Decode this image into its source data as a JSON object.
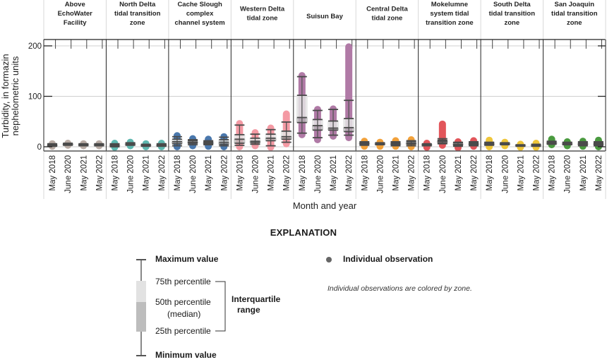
{
  "chart_data": {
    "type": "box",
    "ylabel": "Turbidity, in formazin nephelometric units",
    "xlabel": "Month and year",
    "ylim": [
      -8,
      212
    ],
    "yticks": [
      0,
      100,
      200
    ],
    "ytick_labels": [
      "0",
      "100",
      "200"
    ],
    "grid": true,
    "categories": [
      "May 2018",
      "June 2020",
      "May 2021",
      "May 2022"
    ],
    "zones": [
      {
        "name": "Above EchoWater Facility",
        "title_lines": [
          "Above",
          "EchoWater",
          "Facility"
        ],
        "color": "#b9aca5",
        "boxes": [
          {
            "min": 1,
            "q1": 2,
            "median": 3,
            "q3": 5,
            "max": 6,
            "obs_min": 1,
            "obs_max": 6
          },
          {
            "min": 3,
            "q1": 4,
            "median": 5,
            "q3": 6,
            "max": 7,
            "obs_min": 3,
            "obs_max": 7
          },
          {
            "min": 2,
            "q1": 3,
            "median": 4,
            "q3": 5,
            "max": 6,
            "obs_min": 2,
            "obs_max": 6
          },
          {
            "min": 2,
            "q1": 3,
            "median": 4,
            "q3": 5,
            "max": 6,
            "obs_min": 2,
            "obs_max": 6
          }
        ]
      },
      {
        "name": "North Delta tidal transition zone",
        "title_lines": [
          "North Delta",
          "tidal transition",
          "zone"
        ],
        "color": "#5fb8b0",
        "boxes": [
          {
            "min": 0,
            "q1": 2,
            "median": 3,
            "q3": 4,
            "max": 6,
            "obs_min": -1,
            "obs_max": 7
          },
          {
            "min": 3,
            "q1": 4,
            "median": 5,
            "q3": 7,
            "max": 8,
            "obs_min": 2,
            "obs_max": 9
          },
          {
            "min": 1,
            "q1": 2,
            "median": 3,
            "q3": 4,
            "max": 5,
            "obs_min": 0,
            "obs_max": 6
          },
          {
            "min": 1,
            "q1": 2,
            "median": 3,
            "q3": 5,
            "max": 6,
            "obs_min": 0,
            "obs_max": 7
          }
        ]
      },
      {
        "name": "Cache Slough complex channel system",
        "title_lines": [
          "Cache Slough",
          "complex",
          "channel system"
        ],
        "color": "#4a78ad",
        "boxes": [
          {
            "min": 2,
            "q1": 6,
            "median": 10,
            "q3": 15,
            "max": 20,
            "obs_min": 0,
            "obs_max": 22
          },
          {
            "min": 4,
            "q1": 7,
            "median": 9,
            "q3": 12,
            "max": 14,
            "obs_min": 2,
            "obs_max": 16
          },
          {
            "min": 4,
            "q1": 6,
            "median": 8,
            "q3": 10,
            "max": 12,
            "obs_min": 1,
            "obs_max": 15
          },
          {
            "min": 2,
            "q1": 5,
            "median": 9,
            "q3": 14,
            "max": 19,
            "obs_min": 0,
            "obs_max": 20
          }
        ]
      },
      {
        "name": "Western Delta tidal zone",
        "title_lines": [
          "Western Delta",
          "tidal zone"
        ],
        "color": "#f49aa4",
        "boxes": [
          {
            "min": 3,
            "q1": 7,
            "median": 15,
            "q3": 24,
            "max": 43,
            "obs_min": 0,
            "obs_max": 46
          },
          {
            "min": 5,
            "q1": 8,
            "median": 11,
            "q3": 17,
            "max": 25,
            "obs_min": 2,
            "obs_max": 28
          },
          {
            "min": 2,
            "q1": 12,
            "median": 17,
            "q3": 25,
            "max": 34,
            "obs_min": -1,
            "obs_max": 37
          },
          {
            "min": 9,
            "q1": 15,
            "median": 20,
            "q3": 31,
            "max": 49,
            "obs_min": 6,
            "obs_max": 65
          }
        ]
      },
      {
        "name": "Suisun Bay",
        "title_lines": [
          "Suisun Bay"
        ],
        "color": "#b07aa6",
        "boxes": [
          {
            "min": 27,
            "q1": 48,
            "median": 58,
            "q3": 102,
            "max": 139,
            "obs_min": 24,
            "obs_max": 141
          },
          {
            "min": 18,
            "q1": 33,
            "median": 42,
            "q3": 54,
            "max": 72,
            "obs_min": 14,
            "obs_max": 74
          },
          {
            "min": 23,
            "q1": 33,
            "median": 37,
            "q3": 51,
            "max": 74,
            "obs_min": 21,
            "obs_max": 75
          },
          {
            "min": 23,
            "q1": 30,
            "median": 38,
            "q3": 56,
            "max": 92,
            "obs_min": 18,
            "obs_max": 198
          }
        ]
      },
      {
        "name": "Central Delta tidal zone",
        "title_lines": [
          "Central Delta",
          "tidal zone"
        ],
        "color": "#f2a13a",
        "boxes": [
          {
            "min": 3,
            "q1": 5,
            "median": 7,
            "q3": 8,
            "max": 10,
            "obs_min": 1,
            "obs_max": 11
          },
          {
            "min": 4,
            "q1": 5,
            "median": 6,
            "q3": 7,
            "max": 8,
            "obs_min": 1,
            "obs_max": 9
          },
          {
            "min": 2,
            "q1": 4,
            "median": 6,
            "q3": 8,
            "max": 10,
            "obs_min": 1,
            "obs_max": 12
          },
          {
            "min": 2,
            "q1": 5,
            "median": 7,
            "q3": 10,
            "max": 12,
            "obs_min": 0,
            "obs_max": 14
          }
        ]
      },
      {
        "name": "Mokelumne system tidal transition zone",
        "title_lines": [
          "Mokelumne",
          "system tidal",
          "transition zone"
        ],
        "color": "#e2555a",
        "boxes": [
          {
            "min": 2,
            "q1": 3,
            "median": 4,
            "q3": 5,
            "max": 6,
            "obs_min": -1,
            "obs_max": 7
          },
          {
            "min": 6,
            "q1": 8,
            "median": 11,
            "q3": 13,
            "max": 16,
            "obs_min": 3,
            "obs_max": 45
          },
          {
            "min": 1,
            "q1": 3,
            "median": 5,
            "q3": 8,
            "max": 9,
            "obs_min": -2,
            "obs_max": 10
          },
          {
            "min": 2,
            "q1": 4,
            "median": 6,
            "q3": 8,
            "max": 10,
            "obs_min": 1,
            "obs_max": 12
          }
        ]
      },
      {
        "name": "South Delta tidal transition zone",
        "title_lines": [
          "South Delta",
          "tidal transition",
          "zone"
        ],
        "color": "#efc63a",
        "boxes": [
          {
            "min": 3,
            "q1": 4,
            "median": 6,
            "q3": 8,
            "max": 9,
            "obs_min": 0,
            "obs_max": 13
          },
          {
            "min": 4,
            "q1": 5,
            "median": 6,
            "q3": 7,
            "max": 8,
            "obs_min": 2,
            "obs_max": 9
          },
          {
            "min": 1,
            "q1": 2,
            "median": 3,
            "q3": 3,
            "max": 4,
            "obs_min": -1,
            "obs_max": 5
          },
          {
            "min": 1,
            "q1": 2,
            "median": 3,
            "q3": 4,
            "max": 5,
            "obs_min": -1,
            "obs_max": 7
          }
        ]
      },
      {
        "name": "San Joaquin tidal transition zone",
        "title_lines": [
          "San Joaquin",
          "tidal transition",
          "zone"
        ],
        "color": "#4a9a3f",
        "boxes": [
          {
            "min": 5,
            "q1": 6,
            "median": 8,
            "q3": 10,
            "max": 11,
            "obs_min": 4,
            "obs_max": 15
          },
          {
            "min": 4,
            "q1": 5,
            "median": 6,
            "q3": 8,
            "max": 9,
            "obs_min": 2,
            "obs_max": 10
          },
          {
            "min": 2,
            "q1": 4,
            "median": 6,
            "q3": 8,
            "max": 10,
            "obs_min": 1,
            "obs_max": 11
          },
          {
            "min": 2,
            "q1": 4,
            "median": 6,
            "q3": 8,
            "max": 10,
            "obs_min": 0,
            "obs_max": 13
          }
        ]
      }
    ]
  },
  "legend": {
    "title": "EXPLANATION",
    "max_label": "Maximum value",
    "p75_label": "75th percentile",
    "p50_label": "50th percentile",
    "p50_sub": "(median)",
    "p25_label": "25th percentile",
    "min_label": "Minimum value",
    "iqr_label_1": "Interquartile",
    "iqr_label_2": "range",
    "obs_label": "Individual observation",
    "note": "Individual observations are colored by zone.",
    "obs_color": "#666666"
  }
}
